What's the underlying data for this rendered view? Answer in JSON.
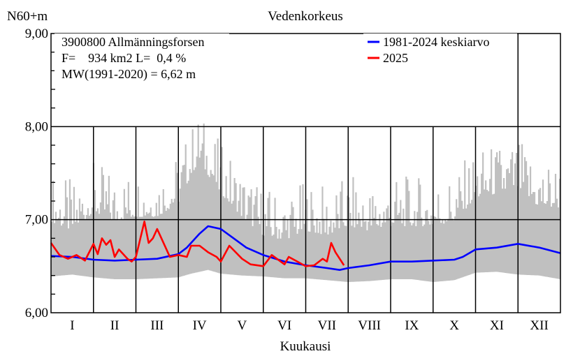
{
  "chart_data": {
    "type": "line",
    "title": "Vedenkorkeus",
    "ylabel": "N60+m",
    "xlabel": "Kuukausi",
    "ylim": [
      6.0,
      9.0
    ],
    "xlim": [
      0,
      12
    ],
    "y_ticks": [
      "6,00",
      "7,00",
      "8,00",
      "9,00"
    ],
    "y_tick_values": [
      6.0,
      7.0,
      8.0,
      9.0
    ],
    "categories": [
      "I",
      "II",
      "III",
      "IV",
      "V",
      "VI",
      "VII",
      "VIII",
      "IX",
      "X",
      "XI",
      "XII"
    ],
    "grid": true,
    "legend_position": "top-right",
    "info": {
      "station": "3900800 Allmänningsforsen",
      "area_line": "F=    934 km2 L=  0,4 %",
      "mw_line": "MW(1991-2020) = 6,62 m"
    },
    "colors": {
      "mean": "#0000ff",
      "current": "#ff0000",
      "range": "#c0c0c0"
    },
    "range_band": {
      "x": [
        0,
        0.5,
        1,
        1.5,
        2,
        2.5,
        3,
        3.3,
        3.5,
        3.7,
        4,
        4.5,
        5,
        5.5,
        6,
        6.5,
        7,
        7.5,
        8,
        8.5,
        9,
        9.5,
        10,
        10.5,
        11,
        11.5,
        12
      ],
      "min": [
        6.39,
        6.41,
        6.38,
        6.36,
        6.36,
        6.37,
        6.38,
        6.42,
        6.44,
        6.46,
        6.42,
        6.4,
        6.39,
        6.37,
        6.37,
        6.35,
        6.33,
        6.34,
        6.36,
        6.36,
        6.33,
        6.35,
        6.43,
        6.44,
        6.41,
        6.4,
        6.36
      ],
      "max": [
        7.1,
        7.0,
        7.2,
        7.1,
        7.15,
        7.15,
        7.3,
        7.6,
        7.75,
        7.6,
        7.4,
        7.15,
        6.95,
        6.9,
        7.0,
        6.95,
        7.05,
        7.0,
        7.05,
        7.05,
        7.05,
        7.1,
        7.35,
        7.4,
        7.45,
        7.25,
        7.25
      ]
    },
    "series": [
      {
        "name": "1981-2024 keskiarvo",
        "x": [
          0,
          0.5,
          1,
          1.5,
          2,
          2.5,
          2.8,
          3,
          3.2,
          3.5,
          3.7,
          4,
          4.3,
          4.6,
          5,
          5.5,
          6,
          6.5,
          6.8,
          7,
          7.5,
          8,
          8.5,
          9,
          9.5,
          9.7,
          10,
          10.5,
          11,
          11.5,
          12
        ],
        "y": [
          6.61,
          6.6,
          6.57,
          6.56,
          6.57,
          6.58,
          6.61,
          6.63,
          6.7,
          6.85,
          6.93,
          6.9,
          6.8,
          6.7,
          6.62,
          6.55,
          6.51,
          6.48,
          6.46,
          6.48,
          6.51,
          6.55,
          6.55,
          6.56,
          6.57,
          6.6,
          6.68,
          6.7,
          6.74,
          6.7,
          6.64
        ]
      },
      {
        "name": "2025",
        "x": [
          0,
          0.2,
          0.4,
          0.6,
          0.8,
          1.0,
          1.1,
          1.2,
          1.3,
          1.4,
          1.5,
          1.6,
          1.8,
          1.9,
          2.0,
          2.2,
          2.3,
          2.4,
          2.5,
          2.6,
          2.8,
          3.0,
          3.2,
          3.3,
          3.5,
          3.7,
          3.9,
          4.0,
          4.2,
          4.5,
          4.7,
          5.0,
          5.2,
          5.5,
          5.6,
          5.8,
          6.0,
          6.2,
          6.4,
          6.5,
          6.6,
          6.7,
          6.9
        ],
        "y": [
          6.75,
          6.62,
          6.58,
          6.62,
          6.56,
          6.74,
          6.63,
          6.8,
          6.73,
          6.78,
          6.6,
          6.68,
          6.58,
          6.55,
          6.6,
          6.98,
          6.75,
          6.8,
          6.9,
          6.8,
          6.6,
          6.62,
          6.6,
          6.72,
          6.72,
          6.65,
          6.6,
          6.55,
          6.72,
          6.58,
          6.52,
          6.5,
          6.62,
          6.52,
          6.6,
          6.55,
          6.5,
          6.51,
          6.58,
          6.55,
          6.75,
          6.65,
          6.51
        ]
      }
    ]
  }
}
